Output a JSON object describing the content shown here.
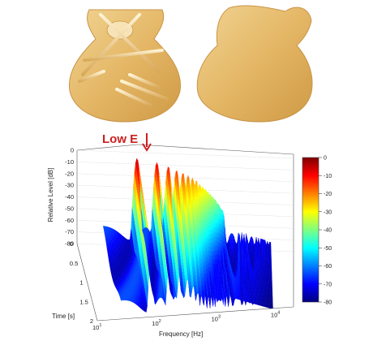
{
  "top_illustrations": [
    {
      "name": "guitar-top-x-bracing",
      "color": "#e7be74"
    },
    {
      "name": "guitar-back-ladder-bracing",
      "color": "#e7be74"
    }
  ],
  "chart_data": {
    "type": "surface3d",
    "annotation": {
      "text": "Low E",
      "frequency_hz": 82,
      "arrow": "down"
    },
    "xlabel": "Frequency [Hz]",
    "ylabel": "Time [s]",
    "zlabel": "Relative Level [dB]",
    "x_scale": "log",
    "xlim_hz": [
      10,
      20000
    ],
    "x_ticks": [
      {
        "base": "10",
        "exp": "1"
      },
      {
        "base": "10",
        "exp": "2"
      },
      {
        "base": "10",
        "exp": "3"
      },
      {
        "base": "10",
        "exp": "4"
      }
    ],
    "y_ticks": [
      "0",
      "0.5",
      "1",
      "1.5",
      "2"
    ],
    "ylim_s": [
      0,
      2
    ],
    "z_ticks": [
      "0",
      "-10",
      "-20",
      "-30",
      "-40",
      "-50",
      "-60",
      "-70",
      "-80"
    ],
    "zlim_db": [
      -80,
      0
    ],
    "colorbar": {
      "ticks": [
        "0",
        "-10",
        "-20",
        "-30",
        "-40",
        "-50",
        "-60",
        "-70",
        "-80"
      ],
      "range_db": [
        -80,
        0
      ],
      "colormap": "jet"
    },
    "grid": true,
    "partials_hz": [
      82,
      165,
      247,
      330,
      412,
      494,
      576,
      659,
      741,
      823,
      906,
      988,
      1070,
      1150,
      1240,
      1320,
      1400,
      1480,
      1560,
      1650
    ],
    "peak_levels_db": [
      -5,
      -8,
      -11,
      -14,
      -16,
      -18,
      -20,
      -22,
      -25,
      -27,
      -29,
      -31,
      -33,
      -35,
      -37,
      -39,
      -41,
      -43,
      -45,
      -47
    ],
    "decay_db_per_s": [
      12,
      14,
      16,
      18,
      20,
      22,
      24,
      26,
      28,
      30,
      32,
      34,
      36,
      38,
      40,
      42,
      44,
      46,
      48,
      50
    ],
    "noise_floor_db": -70
  }
}
